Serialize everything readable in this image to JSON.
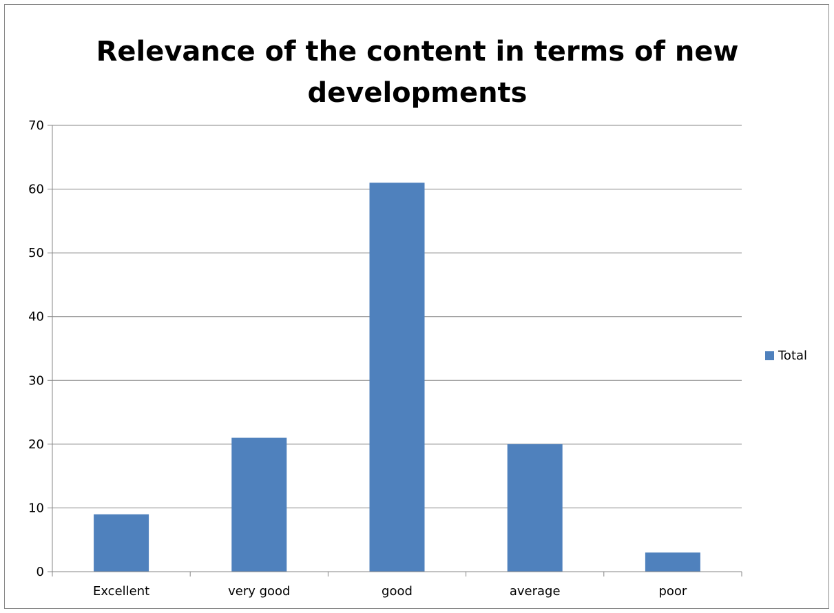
{
  "chart_data": {
    "type": "bar",
    "title": "Relevance of the content in terms of new developments",
    "categories": [
      "Excellent",
      "very good",
      "good",
      "average",
      "poor"
    ],
    "series": [
      {
        "name": "Total",
        "values": [
          9,
          21,
          61,
          20,
          3
        ],
        "color": "#4F81BD"
      }
    ],
    "ylim": [
      0,
      70
    ],
    "yticks": [
      0,
      10,
      20,
      30,
      40,
      50,
      60,
      70
    ],
    "grid": true,
    "legend_position": "right"
  }
}
